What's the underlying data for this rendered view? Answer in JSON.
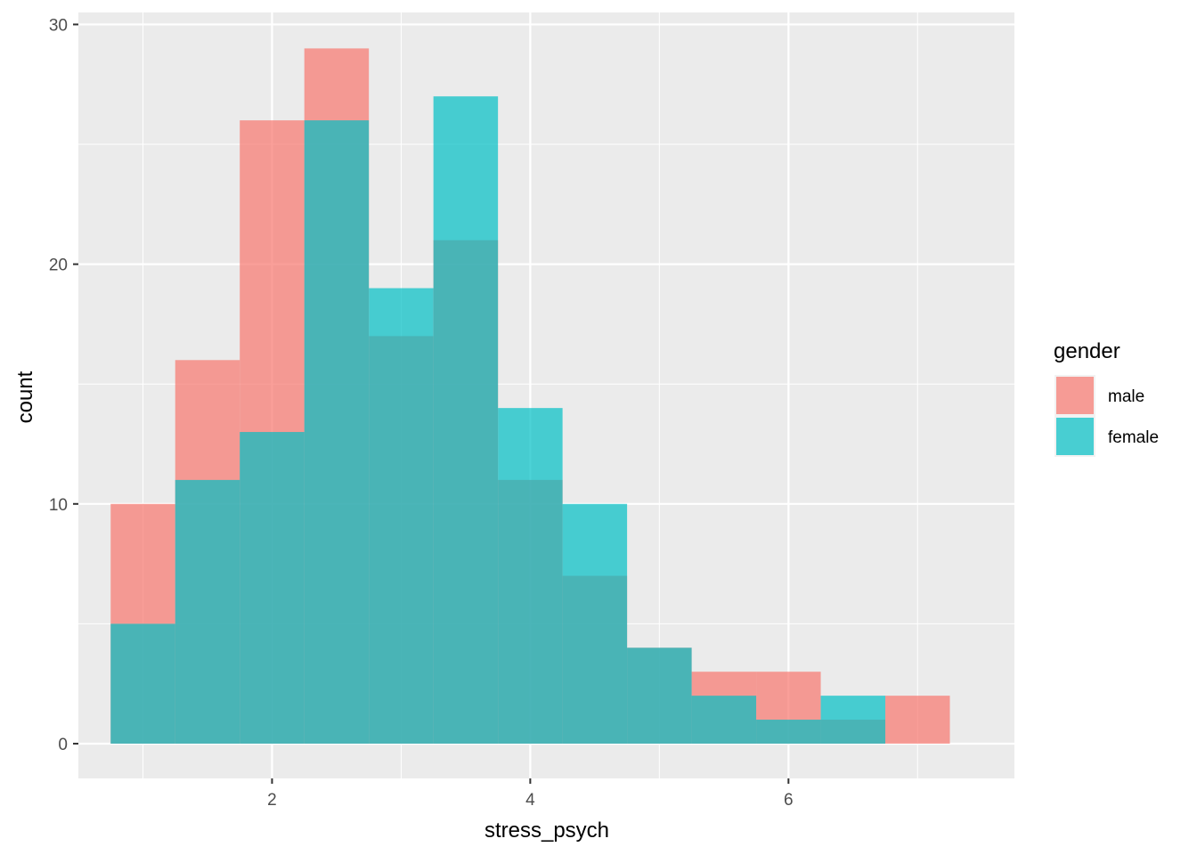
{
  "chart_data": {
    "type": "bar",
    "subtype": "overlapping histogram",
    "title": "",
    "xlabel": "stress_psych",
    "ylabel": "count",
    "xlim": [
      0.5,
      7.75
    ],
    "ylim": [
      -1.45,
      30.5
    ],
    "x_ticks": [
      2,
      4,
      6
    ],
    "x_tick_labels": [
      "2",
      "4",
      "6"
    ],
    "x_minor_grid": [
      1,
      3,
      5,
      7
    ],
    "y_ticks": [
      0,
      10,
      20,
      30
    ],
    "y_tick_labels": [
      "0",
      "10",
      "20",
      "30"
    ],
    "y_minor_grid": [
      5,
      15,
      25
    ],
    "grid": true,
    "bin_width": 0.5,
    "bins": [
      [
        0.75,
        1.25
      ],
      [
        1.25,
        1.75
      ],
      [
        1.75,
        2.25
      ],
      [
        2.25,
        2.75
      ],
      [
        2.75,
        3.25
      ],
      [
        3.25,
        3.75
      ],
      [
        3.75,
        4.25
      ],
      [
        4.25,
        4.75
      ],
      [
        4.75,
        5.25
      ],
      [
        5.25,
        5.75
      ],
      [
        5.75,
        6.25
      ],
      [
        6.25,
        6.75
      ],
      [
        6.75,
        7.25
      ]
    ],
    "series": [
      {
        "name": "male",
        "color": "#F8766D",
        "values": [
          10,
          16,
          26,
          29,
          17,
          21,
          11,
          7,
          4,
          3,
          3,
          1,
          2
        ]
      },
      {
        "name": "female",
        "color": "#00BFC4",
        "values": [
          5,
          11,
          13,
          26,
          19,
          27,
          14,
          10,
          4,
          2,
          1,
          2,
          0
        ]
      }
    ],
    "legend": {
      "title": "gender",
      "position": "right",
      "entries": [
        "male",
        "female"
      ]
    },
    "colors": {
      "panel_background": "#EBEBEB",
      "grid": "#FFFFFF"
    }
  }
}
